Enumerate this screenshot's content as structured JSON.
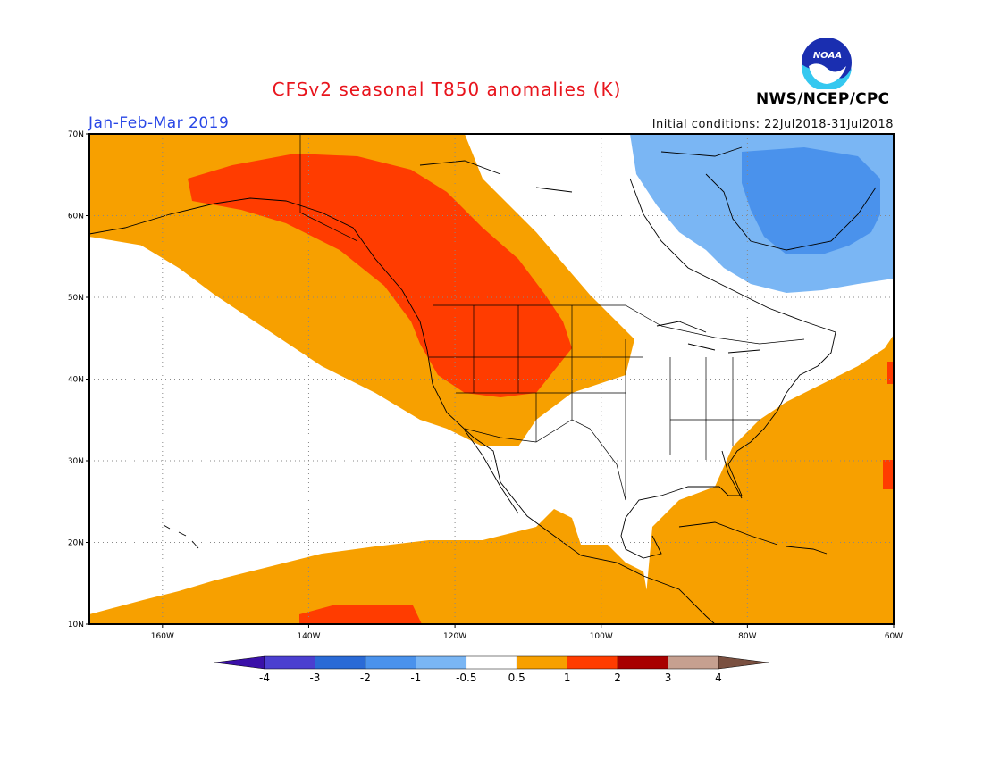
{
  "title": "CFSv2 seasonal T850 anomalies (K)",
  "season": "Jan-Feb-Mar 2019",
  "initial_conditions": "Initial conditions: 22Jul2018-31Jul2018",
  "agency": "NWS/NCEP/CPC",
  "logo_text": "NOAA",
  "axes": {
    "lon_labels": [
      "160W",
      "140W",
      "120W",
      "100W",
      "80W",
      "60W"
    ],
    "lat_labels": [
      "70N",
      "60N",
      "50N",
      "40N",
      "30N",
      "20N",
      "10N"
    ],
    "lon_range": [
      -170,
      -60
    ],
    "lat_range": [
      10,
      70
    ]
  },
  "colorbar": {
    "labels": [
      "-4",
      "-3",
      "-2",
      "-1",
      "-0.5",
      "0.5",
      "1",
      "2",
      "3",
      "4"
    ],
    "colors": [
      "#3a10a8",
      "#4b3fd0",
      "#2a6ad6",
      "#4a92ec",
      "#7ab6f4",
      "#ffffff",
      "#f7a000",
      "#ff3c00",
      "#a80000",
      "#c6a090",
      "#7a5040"
    ]
  },
  "colors": {
    "positive_0_5_1": "#f7a000",
    "positive_1_2": "#ff3c00",
    "negative_0_5_1": "#7ab6f4",
    "negative_1_2": "#4a92ec",
    "title": "#e8141c",
    "season": "#2846e6"
  }
}
